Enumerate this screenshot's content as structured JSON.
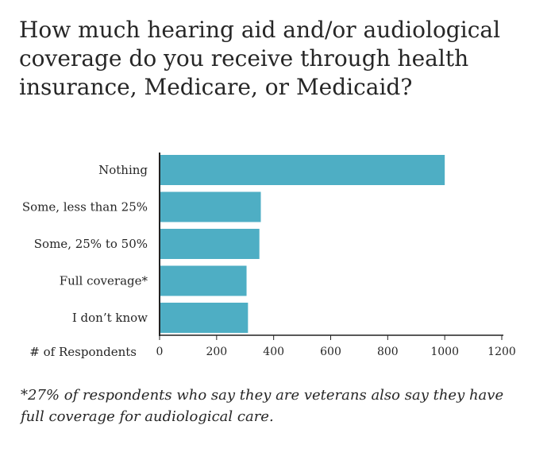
{
  "chart_data": {
    "type": "bar",
    "orientation": "horizontal",
    "title": "How much hearing aid and/or audiological coverage do you receive through health insurance, Medicare, or Medicaid?",
    "categories": [
      "Nothing",
      "Some, less than 25%",
      "Some, 25% to 50%",
      "Full coverage*",
      "I don’t know"
    ],
    "values": [
      1000,
      355,
      350,
      305,
      310
    ],
    "xlabel": "# of Respondents",
    "ylabel": "",
    "xlim": [
      0,
      1200
    ],
    "xticks": [
      0,
      200,
      400,
      600,
      800,
      1000,
      1200
    ],
    "xtick_labels": [
      "0",
      "200",
      "400",
      "600",
      "800",
      "1000",
      "1200"
    ],
    "bar_color": "#4eaec4",
    "grid": false,
    "footnote": "*27% of respondents who say they are veterans also say they have full coverage for audiological care."
  }
}
